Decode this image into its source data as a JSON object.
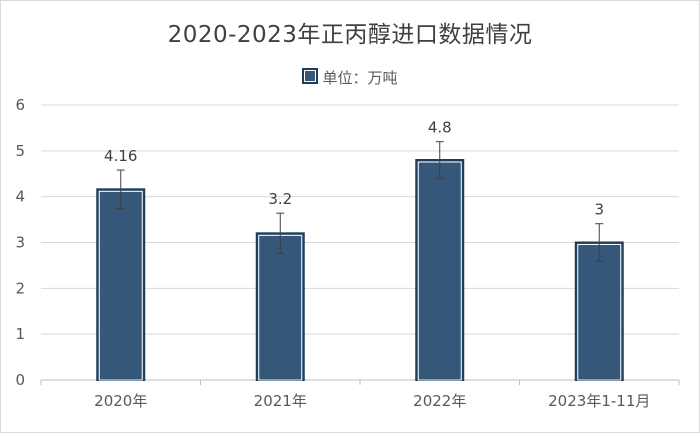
{
  "chart_data": {
    "type": "bar",
    "title": "2020-2023年正丙醇进口数据情况",
    "categories": [
      "2020年",
      "2021年",
      "2022年",
      "2023年1-11月"
    ],
    "series": [
      {
        "name": "单位：万吨",
        "values": [
          4.16,
          3.2,
          4.8,
          3
        ]
      }
    ],
    "data_labels": [
      "4.16",
      "3.2",
      "4.8",
      "3"
    ],
    "error_bars": [
      0.42,
      0.44,
      0.4,
      0.41
    ],
    "ylim": [
      0,
      6
    ],
    "yticks": [
      "0",
      "1",
      "2",
      "3",
      "4",
      "5",
      "6"
    ],
    "xlabel": "",
    "ylabel": "",
    "grid": true,
    "legend_position": "top",
    "colors": {
      "bar_fill": "#35587a",
      "bar_border": "#1f3c5a",
      "grid": "#d9d9d9",
      "axis": "#bfbfbf"
    }
  }
}
